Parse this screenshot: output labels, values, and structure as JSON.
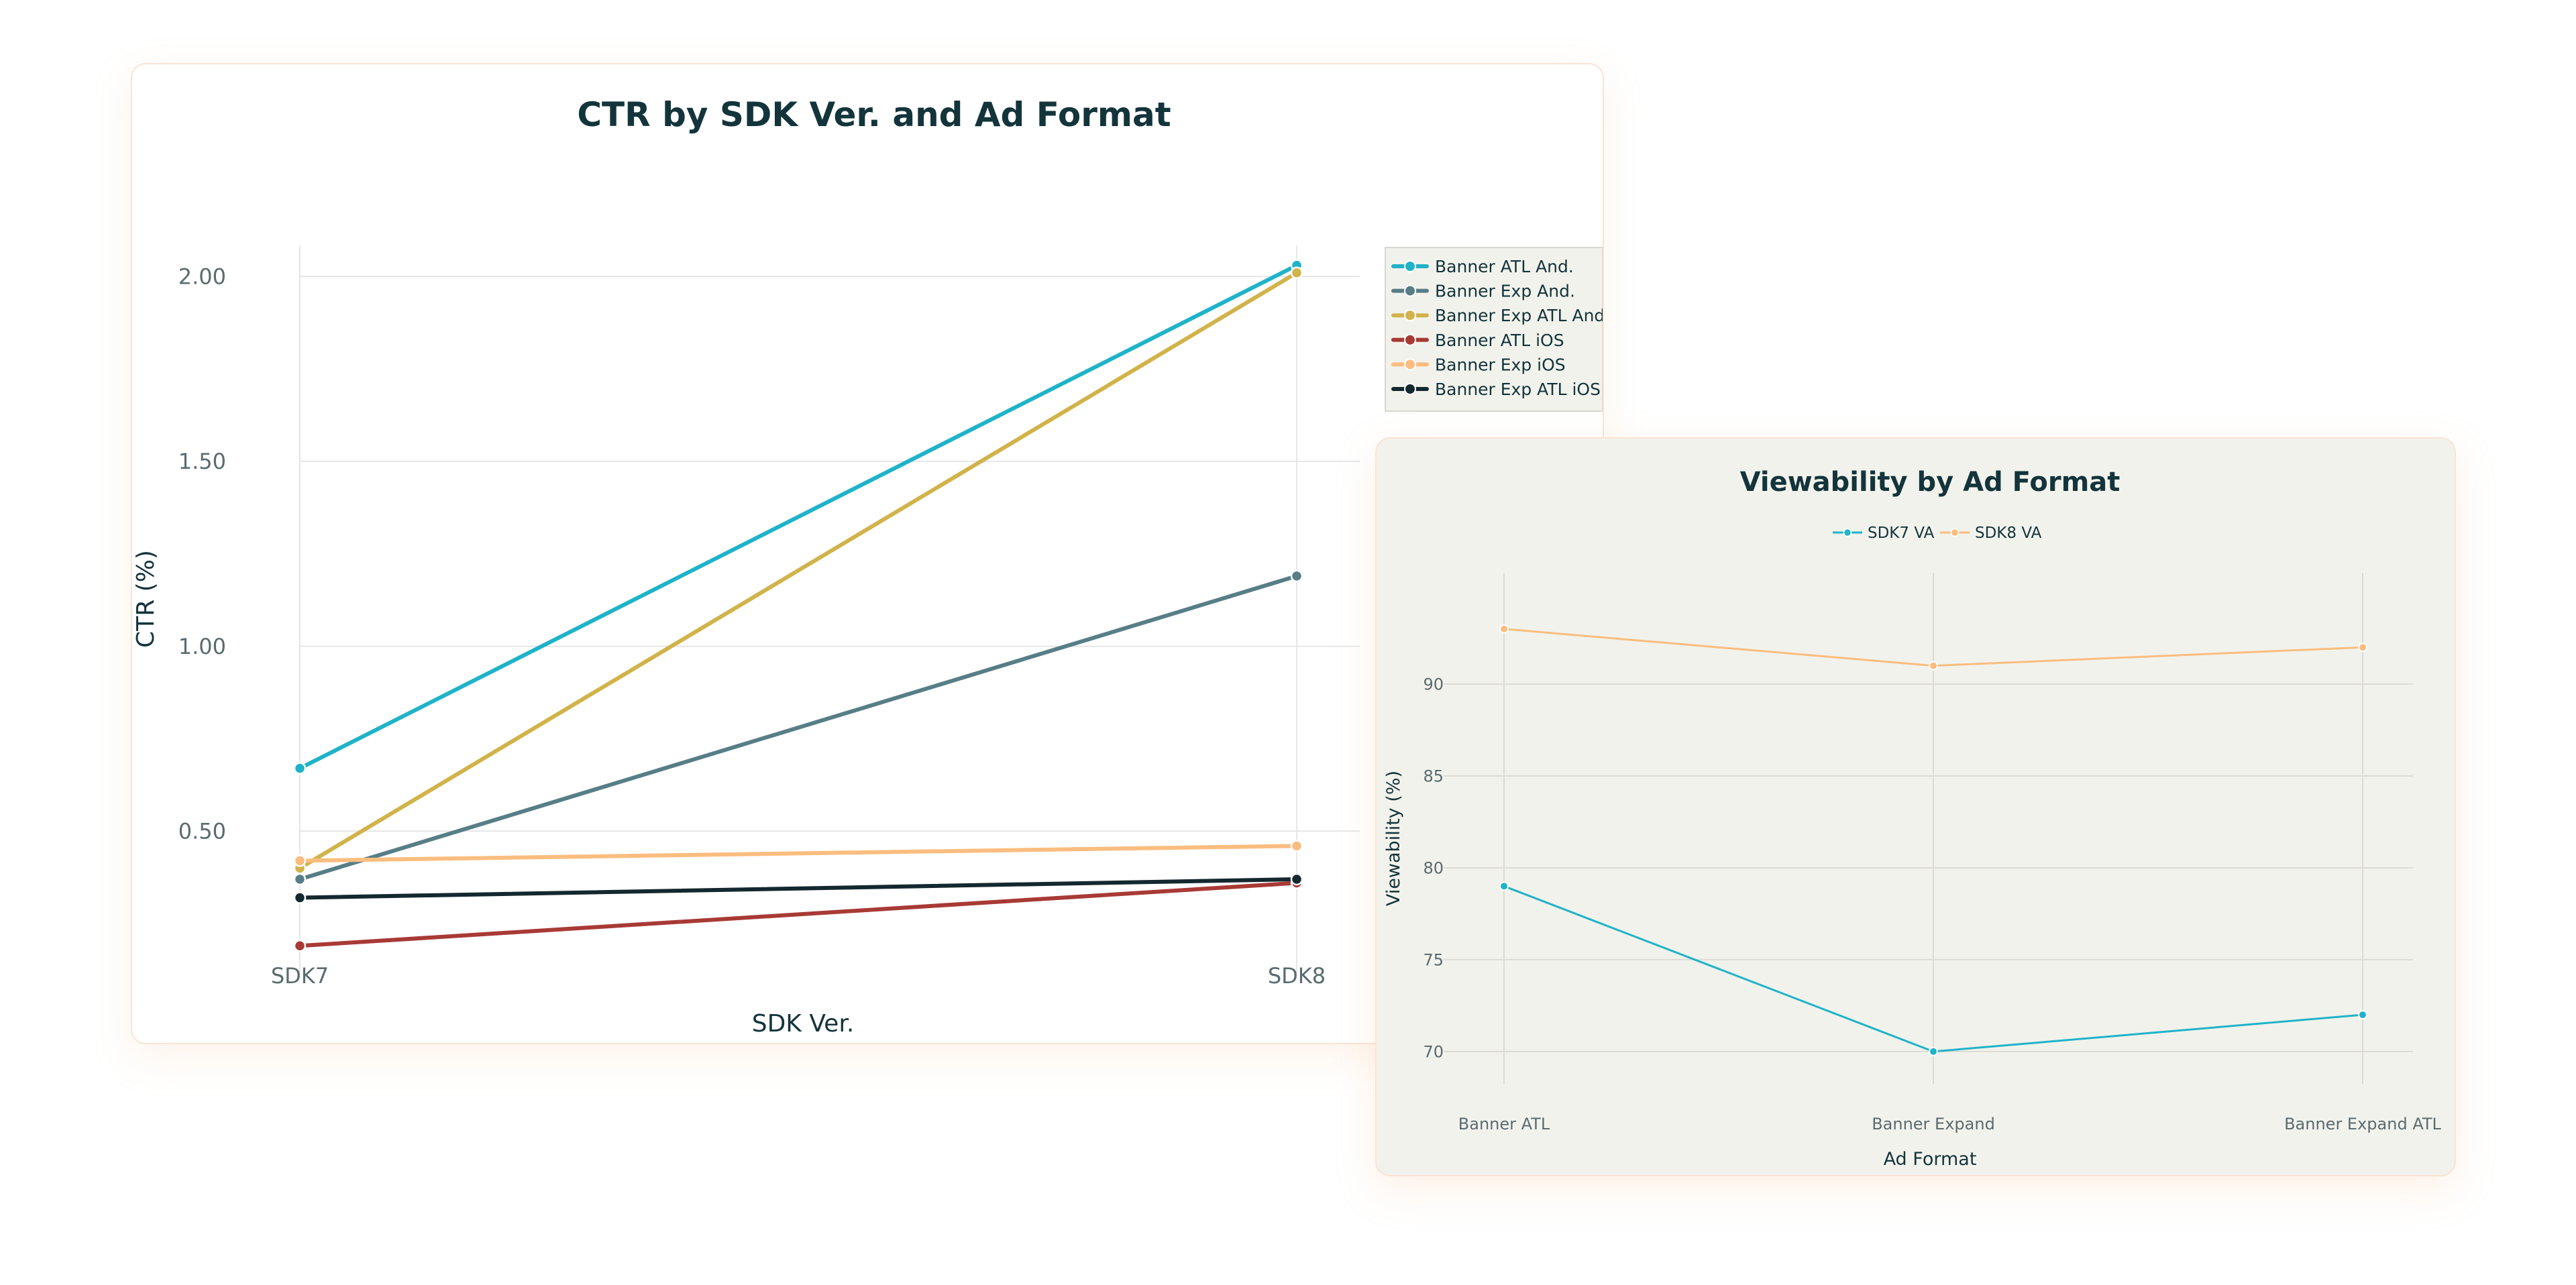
{
  "chart_data": [
    {
      "type": "line",
      "title": "CTR by SDK Ver. and Ad Format",
      "xlabel": "SDK Ver.",
      "ylabel": "CTR (%)",
      "categories": [
        "SDK7",
        "SDK8"
      ],
      "yticks": [
        "0.50",
        "1.00",
        "1.50",
        "2.00"
      ],
      "ytick_values": [
        0.5,
        1.0,
        1.5,
        2.0
      ],
      "ylim": [
        0.0,
        2.16
      ],
      "legend_position": "top-right",
      "grid": true,
      "series": [
        {
          "name": "Banner ATL And.",
          "color": "#1fb3c9",
          "values": [
            0.67,
            2.03
          ]
        },
        {
          "name": "Banner Exp And.",
          "color": "#577e87",
          "values": [
            0.37,
            1.19
          ]
        },
        {
          "name": "Banner Exp ATL And.",
          "color": "#d1b34a",
          "values": [
            0.4,
            2.01
          ]
        },
        {
          "name": "Banner ATL iOS",
          "color": "#a83a35",
          "values": [
            0.19,
            0.36
          ]
        },
        {
          "name": "Banner Exp iOS",
          "color": "#fbbd7f",
          "values": [
            0.42,
            0.46
          ]
        },
        {
          "name": "Banner Exp ATL iOS",
          "color": "#13282f",
          "values": [
            0.32,
            0.37
          ]
        }
      ]
    },
    {
      "type": "line",
      "title": "Viewability by Ad Format",
      "xlabel": "Ad Format",
      "ylabel": "Viewability (%)",
      "categories": [
        "Banner ATL",
        "Banner Expand",
        "Banner Expand ATL"
      ],
      "yticks": [
        "70",
        "75",
        "80",
        "85",
        "90"
      ],
      "ytick_values": [
        70,
        75,
        80,
        85,
        90
      ],
      "ylim": [
        68.9,
        94.6
      ],
      "legend_position": "top-center",
      "grid": true,
      "series": [
        {
          "name": "SDK7 VA",
          "color": "#1fb3c9",
          "values": [
            79,
            70,
            72
          ]
        },
        {
          "name": "SDK8 VA",
          "color": "#fbbd7f",
          "values": [
            93,
            91,
            92
          ]
        }
      ]
    }
  ]
}
